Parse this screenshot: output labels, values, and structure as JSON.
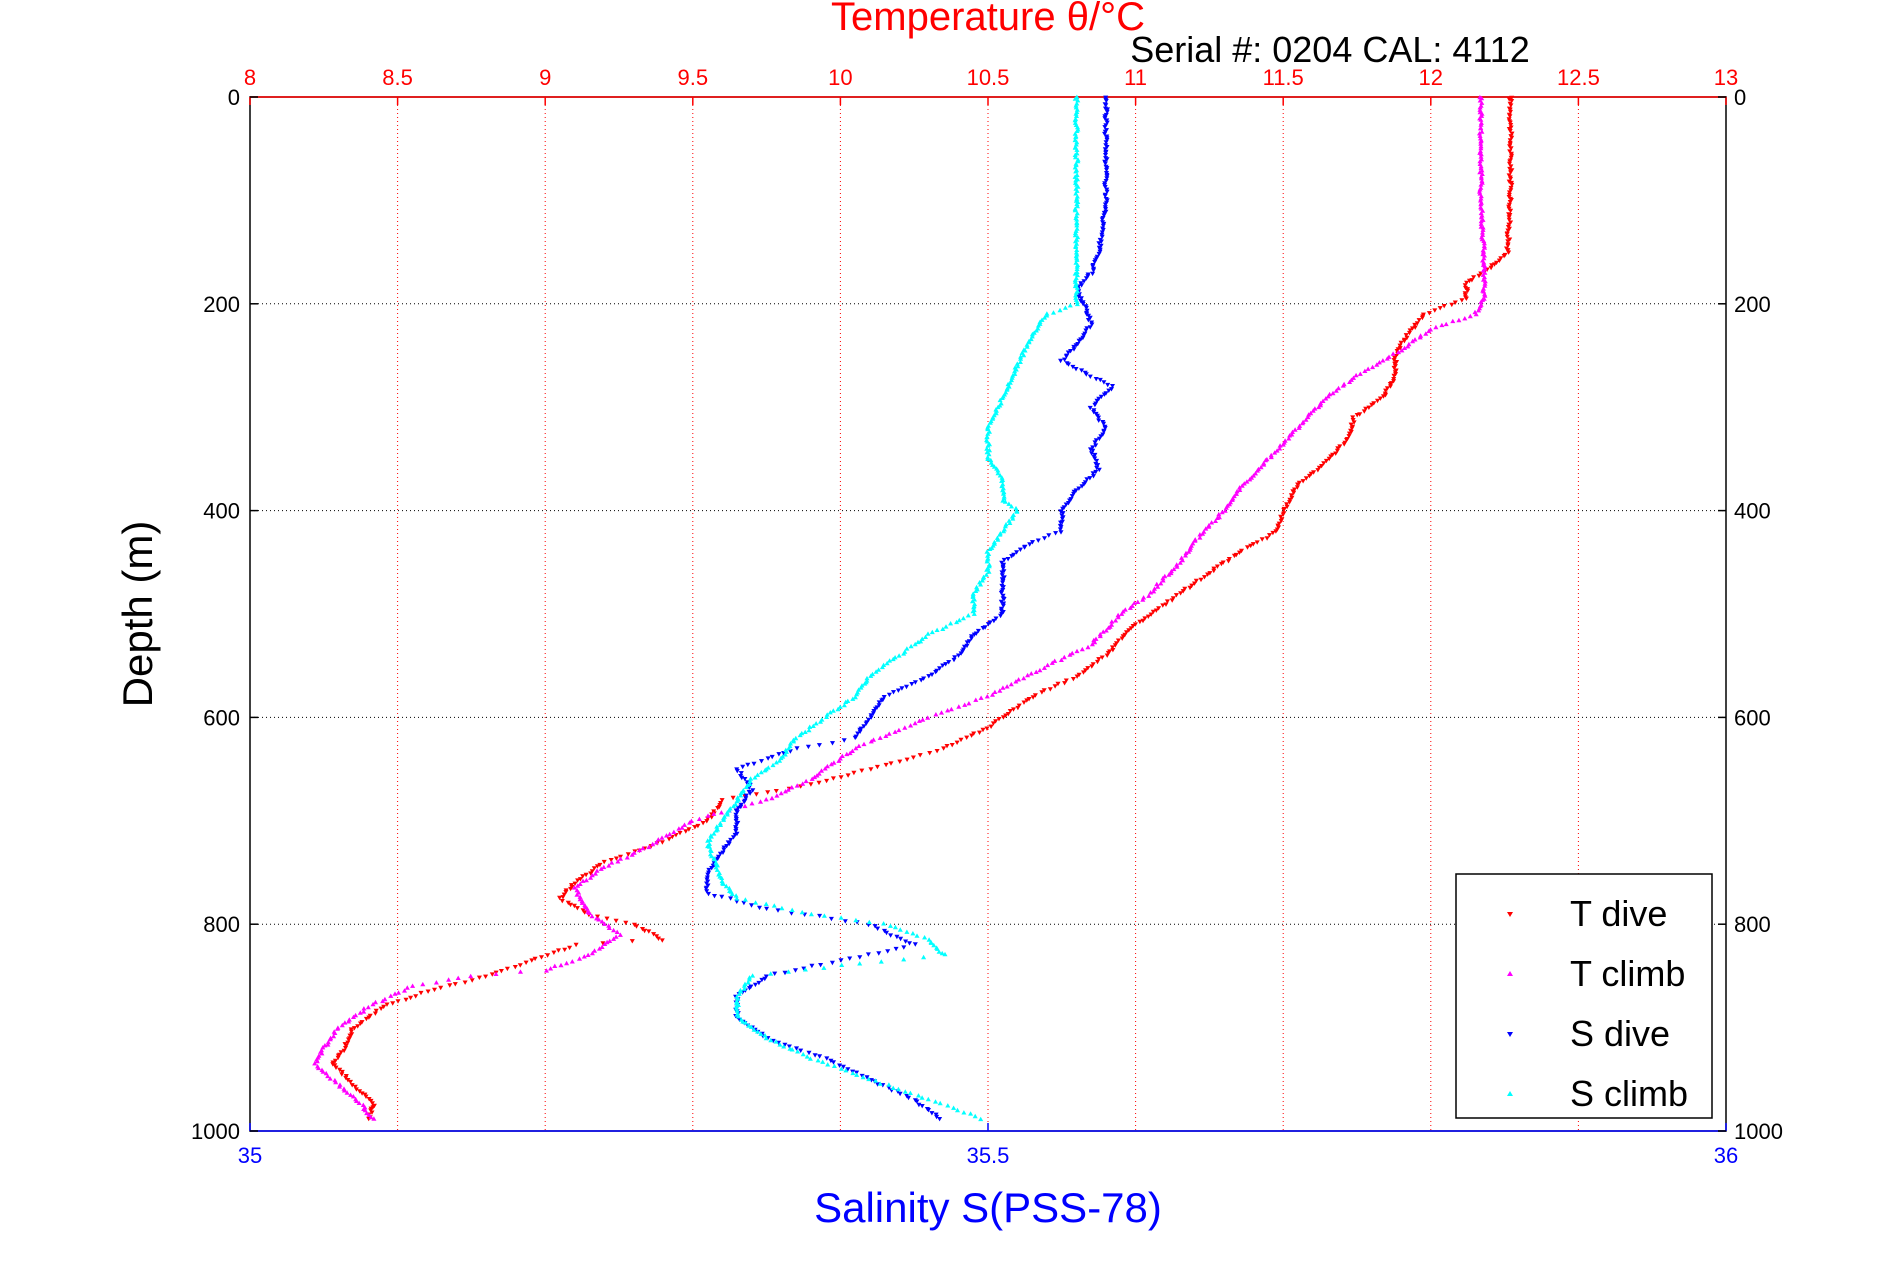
{
  "chart_data": {
    "type": "scatter",
    "title": "Temperature θ/°C",
    "subtitle": "Serial #: 0204  CAL: 4112",
    "xlabel_top": "Temperature θ/°C",
    "xlabel_bottom": "Salinity S(PSS-78)",
    "ylabel": "Depth (m)",
    "temp_axis": {
      "range": [
        8,
        13
      ],
      "ticks": [
        "8",
        "8.5",
        "9",
        "9.5",
        "10",
        "10.5",
        "11",
        "11.5",
        "12",
        "12.5",
        "13"
      ],
      "color": "#ff0000"
    },
    "sal_axis": {
      "range": [
        35,
        36
      ],
      "ticks": [
        "35",
        "35.5",
        "36"
      ],
      "color": "#0000ff"
    },
    "depth_axis": {
      "range": [
        0,
        1000
      ],
      "reversed": true,
      "ticks": [
        "0",
        "200",
        "400",
        "600",
        "800",
        "1000"
      ]
    },
    "grid": true,
    "legend": {
      "placement": "bottom-right",
      "entries": [
        {
          "label": "T dive",
          "color": "#ff0000"
        },
        {
          "label": "T climb",
          "color": "#ff00ff"
        },
        {
          "label": "S dive",
          "color": "#0000ff"
        },
        {
          "label": "S climb",
          "color": "#00ffff"
        }
      ]
    },
    "series": [
      {
        "name": "T dive",
        "axis": "temp",
        "color": "#ff0000",
        "points": [
          [
            12.27,
            0
          ],
          [
            12.27,
            50
          ],
          [
            12.27,
            100
          ],
          [
            12.26,
            150
          ],
          [
            12.2,
            165
          ],
          [
            12.12,
            180
          ],
          [
            12.12,
            195
          ],
          [
            11.98,
            210
          ],
          [
            11.92,
            230
          ],
          [
            11.88,
            250
          ],
          [
            11.88,
            270
          ],
          [
            11.84,
            290
          ],
          [
            11.74,
            310
          ],
          [
            11.72,
            330
          ],
          [
            11.66,
            350
          ],
          [
            11.55,
            375
          ],
          [
            11.5,
            400
          ],
          [
            11.48,
            420
          ],
          [
            11.35,
            440
          ],
          [
            11.25,
            460
          ],
          [
            11.15,
            480
          ],
          [
            11.05,
            500
          ],
          [
            11.0,
            510
          ],
          [
            10.9,
            540
          ],
          [
            10.8,
            560
          ],
          [
            10.65,
            580
          ],
          [
            10.5,
            610
          ],
          [
            10.35,
            630
          ],
          [
            10.1,
            650
          ],
          [
            9.9,
            665
          ],
          [
            9.6,
            680
          ],
          [
            9.55,
            700
          ],
          [
            9.4,
            720
          ],
          [
            9.2,
            740
          ],
          [
            9.1,
            760
          ],
          [
            9.05,
            775
          ],
          [
            9.15,
            790
          ],
          [
            9.3,
            800
          ],
          [
            9.4,
            815
          ],
          [
            9.1,
            820
          ],
          [
            8.95,
            835
          ],
          [
            8.8,
            850
          ],
          [
            8.6,
            865
          ],
          [
            8.45,
            880
          ],
          [
            8.35,
            900
          ],
          [
            8.32,
            920
          ],
          [
            8.28,
            935
          ],
          [
            8.35,
            955
          ],
          [
            8.42,
            975
          ],
          [
            8.4,
            990
          ]
        ]
      },
      {
        "name": "T climb",
        "axis": "temp",
        "color": "#ff00ff",
        "points": [
          [
            12.17,
            0
          ],
          [
            12.17,
            50
          ],
          [
            12.17,
            100
          ],
          [
            12.18,
            150
          ],
          [
            12.18,
            195
          ],
          [
            12.15,
            210
          ],
          [
            12.0,
            225
          ],
          [
            11.9,
            245
          ],
          [
            11.75,
            270
          ],
          [
            11.65,
            290
          ],
          [
            11.55,
            320
          ],
          [
            11.45,
            350
          ],
          [
            11.35,
            380
          ],
          [
            11.3,
            400
          ],
          [
            11.2,
            430
          ],
          [
            11.15,
            450
          ],
          [
            11.05,
            480
          ],
          [
            10.95,
            500
          ],
          [
            10.85,
            530
          ],
          [
            10.7,
            550
          ],
          [
            10.5,
            580
          ],
          [
            10.3,
            600
          ],
          [
            10.05,
            630
          ],
          [
            9.9,
            660
          ],
          [
            9.75,
            680
          ],
          [
            9.5,
            700
          ],
          [
            9.35,
            725
          ],
          [
            9.2,
            745
          ],
          [
            9.1,
            765
          ],
          [
            9.15,
            790
          ],
          [
            9.25,
            810
          ],
          [
            9.15,
            830
          ],
          [
            9.0,
            845
          ],
          [
            8.75,
            850
          ],
          [
            8.55,
            860
          ],
          [
            8.4,
            880
          ],
          [
            8.3,
            900
          ],
          [
            8.25,
            920
          ],
          [
            8.22,
            935
          ],
          [
            8.3,
            955
          ],
          [
            8.38,
            975
          ],
          [
            8.42,
            990
          ]
        ]
      },
      {
        "name": "S dive",
        "axis": "sal",
        "color": "#0000ff",
        "points": [
          [
            35.58,
            0
          ],
          [
            35.58,
            50
          ],
          [
            35.58,
            100
          ],
          [
            35.575,
            150
          ],
          [
            35.57,
            170
          ],
          [
            35.56,
            185
          ],
          [
            35.565,
            200
          ],
          [
            35.57,
            220
          ],
          [
            35.56,
            240
          ],
          [
            35.55,
            255
          ],
          [
            35.57,
            270
          ],
          [
            35.585,
            280
          ],
          [
            35.57,
            300
          ],
          [
            35.58,
            320
          ],
          [
            35.57,
            340
          ],
          [
            35.575,
            360
          ],
          [
            35.56,
            380
          ],
          [
            35.55,
            400
          ],
          [
            35.55,
            420
          ],
          [
            35.53,
            430
          ],
          [
            35.51,
            450
          ],
          [
            35.51,
            470
          ],
          [
            35.51,
            500
          ],
          [
            35.49,
            520
          ],
          [
            35.48,
            540
          ],
          [
            35.46,
            560
          ],
          [
            35.43,
            580
          ],
          [
            35.42,
            600
          ],
          [
            35.41,
            620
          ],
          [
            35.37,
            630
          ],
          [
            35.35,
            640
          ],
          [
            35.33,
            650
          ],
          [
            35.34,
            670
          ],
          [
            35.33,
            690
          ],
          [
            35.33,
            710
          ],
          [
            35.32,
            730
          ],
          [
            35.31,
            750
          ],
          [
            35.31,
            770
          ],
          [
            35.35,
            785
          ],
          [
            35.42,
            800
          ],
          [
            35.45,
            820
          ],
          [
            35.4,
            835
          ],
          [
            35.35,
            850
          ],
          [
            35.33,
            870
          ],
          [
            35.33,
            890
          ],
          [
            35.35,
            910
          ],
          [
            35.39,
            930
          ],
          [
            35.42,
            950
          ],
          [
            35.45,
            970
          ],
          [
            35.47,
            990
          ]
        ]
      },
      {
        "name": "S climb",
        "axis": "sal",
        "color": "#00ffff",
        "points": [
          [
            35.56,
            0
          ],
          [
            35.56,
            50
          ],
          [
            35.56,
            100
          ],
          [
            35.56,
            150
          ],
          [
            35.56,
            200
          ],
          [
            35.54,
            210
          ],
          [
            35.53,
            230
          ],
          [
            35.52,
            260
          ],
          [
            35.51,
            290
          ],
          [
            35.5,
            320
          ],
          [
            35.5,
            350
          ],
          [
            35.51,
            370
          ],
          [
            35.51,
            390
          ],
          [
            35.52,
            400
          ],
          [
            35.51,
            420
          ],
          [
            35.5,
            440
          ],
          [
            35.5,
            460
          ],
          [
            35.49,
            480
          ],
          [
            35.49,
            500
          ],
          [
            35.46,
            520
          ],
          [
            35.44,
            540
          ],
          [
            35.42,
            560
          ],
          [
            35.41,
            580
          ],
          [
            35.39,
            600
          ],
          [
            35.37,
            620
          ],
          [
            35.36,
            640
          ],
          [
            35.34,
            660
          ],
          [
            35.33,
            680
          ],
          [
            35.32,
            700
          ],
          [
            35.31,
            720
          ],
          [
            35.315,
            740
          ],
          [
            35.32,
            760
          ],
          [
            35.33,
            775
          ],
          [
            35.38,
            790
          ],
          [
            35.43,
            800
          ],
          [
            35.46,
            815
          ],
          [
            35.47,
            830
          ],
          [
            35.4,
            840
          ],
          [
            35.34,
            850
          ],
          [
            35.33,
            870
          ],
          [
            35.33,
            890
          ],
          [
            35.35,
            910
          ],
          [
            35.38,
            930
          ],
          [
            35.42,
            950
          ],
          [
            35.46,
            970
          ],
          [
            35.5,
            990
          ]
        ]
      }
    ]
  }
}
